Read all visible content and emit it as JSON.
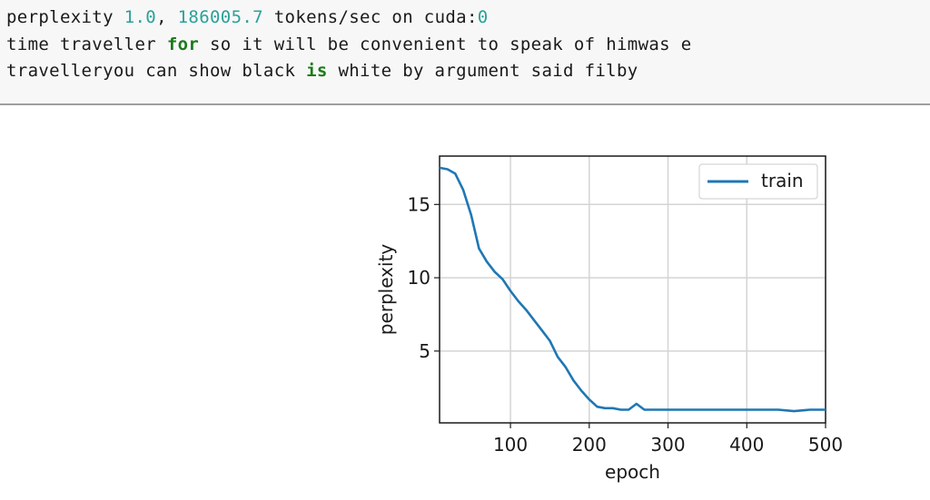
{
  "output": {
    "line1": {
      "prefix": "perplexity ",
      "perplexity": "1.0",
      "sep": ", ",
      "speed": "186005.7",
      "mid": " tokens/sec on cuda:",
      "device": "0"
    },
    "line2": {
      "pre": "time traveller ",
      "kw": "for",
      "post": " so it will be convenient to speak of himwas e"
    },
    "line3": {
      "pre": "travelleryou can show black ",
      "kw": "is",
      "post": " white by argument said filby"
    }
  },
  "chart_data": {
    "type": "line",
    "xlabel": "epoch",
    "ylabel": "perplexity",
    "xlim": [
      10,
      500
    ],
    "ylim": [
      0.1,
      18.3
    ],
    "xticks": [
      100,
      200,
      300,
      400,
      500
    ],
    "yticks": [
      5,
      10,
      15
    ],
    "grid": true,
    "legend_position": "top-right",
    "series": [
      {
        "name": "train",
        "color": "#1f77b4",
        "x": [
          10,
          20,
          30,
          40,
          50,
          60,
          70,
          80,
          90,
          100,
          110,
          120,
          130,
          140,
          150,
          160,
          170,
          180,
          190,
          200,
          210,
          220,
          230,
          240,
          250,
          260,
          270,
          280,
          290,
          300,
          320,
          340,
          360,
          380,
          400,
          420,
          440,
          460,
          480,
          500
        ],
        "y": [
          17.5,
          17.4,
          17.1,
          16.0,
          14.3,
          12.0,
          11.1,
          10.4,
          9.9,
          9.1,
          8.4,
          7.8,
          7.1,
          6.4,
          5.7,
          4.6,
          3.9,
          3.0,
          2.3,
          1.7,
          1.2,
          1.1,
          1.1,
          1.0,
          1.0,
          1.4,
          1.0,
          1.0,
          1.0,
          1.0,
          1.0,
          1.0,
          1.0,
          1.0,
          1.0,
          1.0,
          1.0,
          0.9,
          1.0,
          1.0
        ]
      }
    ]
  }
}
